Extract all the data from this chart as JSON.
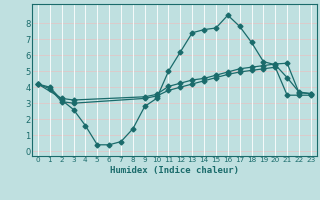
{
  "xlabel": "Humidex (Indice chaleur)",
  "bg_color": "#bfe0e0",
  "line_color": "#1a6b6b",
  "grid_color": "#ffffff",
  "grid_minor_color": "#e0c8c8",
  "xlim": [
    -0.5,
    23.5
  ],
  "ylim": [
    -0.3,
    9.2
  ],
  "xticks": [
    0,
    1,
    2,
    3,
    4,
    5,
    6,
    7,
    8,
    9,
    10,
    11,
    12,
    13,
    14,
    15,
    16,
    17,
    18,
    19,
    20,
    21,
    22,
    23
  ],
  "yticks": [
    0,
    1,
    2,
    3,
    4,
    5,
    6,
    7,
    8
  ],
  "line1_x": [
    0,
    1,
    2,
    3,
    4,
    5,
    6,
    7,
    8,
    9,
    10,
    11,
    12,
    13,
    14,
    15,
    16,
    17,
    18,
    19,
    20,
    21,
    22,
    23
  ],
  "line1_y": [
    4.2,
    4.0,
    3.2,
    2.6,
    1.6,
    0.4,
    0.4,
    0.6,
    1.4,
    2.8,
    3.3,
    5.0,
    6.2,
    7.4,
    7.6,
    7.7,
    8.5,
    7.8,
    6.8,
    5.6,
    5.4,
    4.6,
    3.7,
    3.6
  ],
  "line2_x": [
    0,
    2,
    3,
    9,
    10,
    11,
    12,
    13,
    14,
    15,
    16,
    17,
    18,
    19,
    20,
    21,
    22,
    23
  ],
  "line2_y": [
    4.2,
    3.3,
    3.2,
    3.4,
    3.55,
    4.05,
    4.25,
    4.45,
    4.55,
    4.75,
    4.95,
    5.15,
    5.25,
    5.35,
    5.45,
    5.5,
    3.65,
    3.6
  ],
  "line3_x": [
    0,
    1,
    2,
    3,
    9,
    10,
    11,
    12,
    13,
    14,
    15,
    16,
    17,
    18,
    19,
    20,
    21,
    22,
    23
  ],
  "line3_y": [
    4.2,
    3.9,
    3.1,
    3.0,
    3.3,
    3.45,
    3.8,
    4.0,
    4.2,
    4.4,
    4.6,
    4.8,
    4.95,
    5.05,
    5.15,
    5.25,
    3.5,
    3.5,
    3.5
  ]
}
